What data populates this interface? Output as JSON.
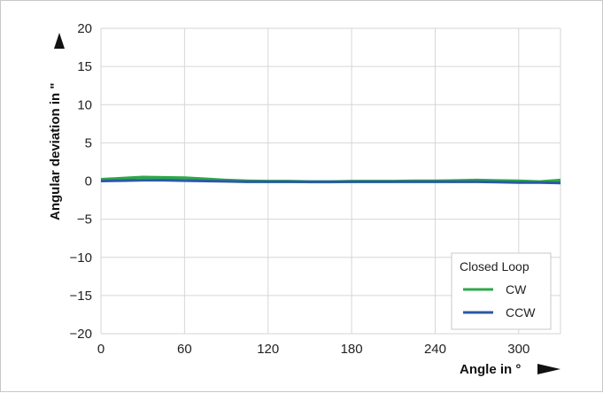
{
  "chart_data": {
    "type": "line",
    "title": "",
    "xlabel": "Angle in °",
    "ylabel": "Angular deviation in \"",
    "xlim": [
      0,
      330
    ],
    "ylim": [
      -20,
      20
    ],
    "x_ticks": [
      0,
      60,
      120,
      180,
      240,
      300
    ],
    "y_ticks": [
      20,
      15,
      10,
      5,
      0,
      -5,
      -10,
      -15,
      -20
    ],
    "grid": true,
    "legend": {
      "title": "Closed Loop",
      "placement": "bottom-right"
    },
    "series": [
      {
        "name": "CW",
        "color": "#2ea84a",
        "x": [
          0,
          15,
          30,
          45,
          60,
          75,
          90,
          105,
          120,
          135,
          150,
          165,
          180,
          195,
          210,
          225,
          240,
          255,
          270,
          285,
          300,
          315,
          330
        ],
        "values": [
          0.2,
          0.35,
          0.5,
          0.45,
          0.4,
          0.25,
          0.1,
          0.0,
          -0.05,
          -0.05,
          -0.1,
          -0.1,
          -0.05,
          -0.05,
          -0.05,
          0.0,
          0.0,
          0.05,
          0.1,
          0.05,
          0.0,
          -0.1,
          0.1
        ]
      },
      {
        "name": "CCW",
        "color": "#2a5aa6",
        "x": [
          0,
          15,
          30,
          45,
          60,
          75,
          90,
          105,
          120,
          135,
          150,
          165,
          180,
          195,
          210,
          225,
          240,
          255,
          270,
          285,
          300,
          315,
          330
        ],
        "values": [
          0.0,
          0.05,
          0.1,
          0.1,
          0.05,
          0.0,
          -0.05,
          -0.1,
          -0.1,
          -0.1,
          -0.1,
          -0.1,
          -0.1,
          -0.1,
          -0.1,
          -0.1,
          -0.1,
          -0.1,
          -0.1,
          -0.15,
          -0.2,
          -0.2,
          -0.25
        ]
      }
    ]
  }
}
